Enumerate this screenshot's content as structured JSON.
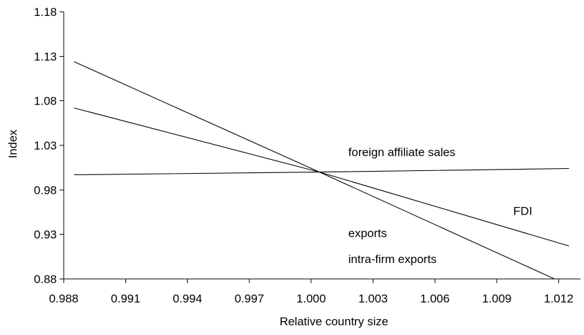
{
  "chart_data": {
    "type": "line",
    "title": "",
    "xlabel": "Relative country size",
    "ylabel": "Index",
    "xlim": [
      0.988,
      1.012
    ],
    "ylim": [
      0.88,
      1.18
    ],
    "x_ticks": [
      "0.988",
      "0.991",
      "0.994",
      "0.997",
      "1.000",
      "1.003",
      "1.006",
      "1.009",
      "1.012"
    ],
    "y_ticks": [
      "1.18",
      "1.13",
      "1.08",
      "1.03",
      "0.98",
      "0.93",
      "0.88"
    ],
    "grid": false,
    "legend": "none",
    "series": [
      {
        "name": "exports / intra-firm exports",
        "x": [
          0.9885,
          1.0004,
          1.0118
        ],
        "y": [
          1.124,
          1.0,
          0.88
        ]
      },
      {
        "name": "FDI",
        "x": [
          0.9885,
          1.0004,
          1.0125
        ],
        "y": [
          1.072,
          1.0,
          0.917
        ]
      },
      {
        "name": "foreign affiliate sales",
        "x": [
          0.9885,
          1.0004,
          1.0125
        ],
        "y": [
          0.997,
          1.0,
          1.004
        ]
      }
    ],
    "annotations": [
      {
        "text": "foreign affiliate sales",
        "x": 1.0018,
        "y": 1.018
      },
      {
        "text": "FDI",
        "x": 1.0098,
        "y": 0.952
      },
      {
        "text": "exports",
        "x": 1.0018,
        "y": 0.927
      },
      {
        "text": "intra-firm exports",
        "x": 1.0018,
        "y": 0.898
      }
    ]
  }
}
